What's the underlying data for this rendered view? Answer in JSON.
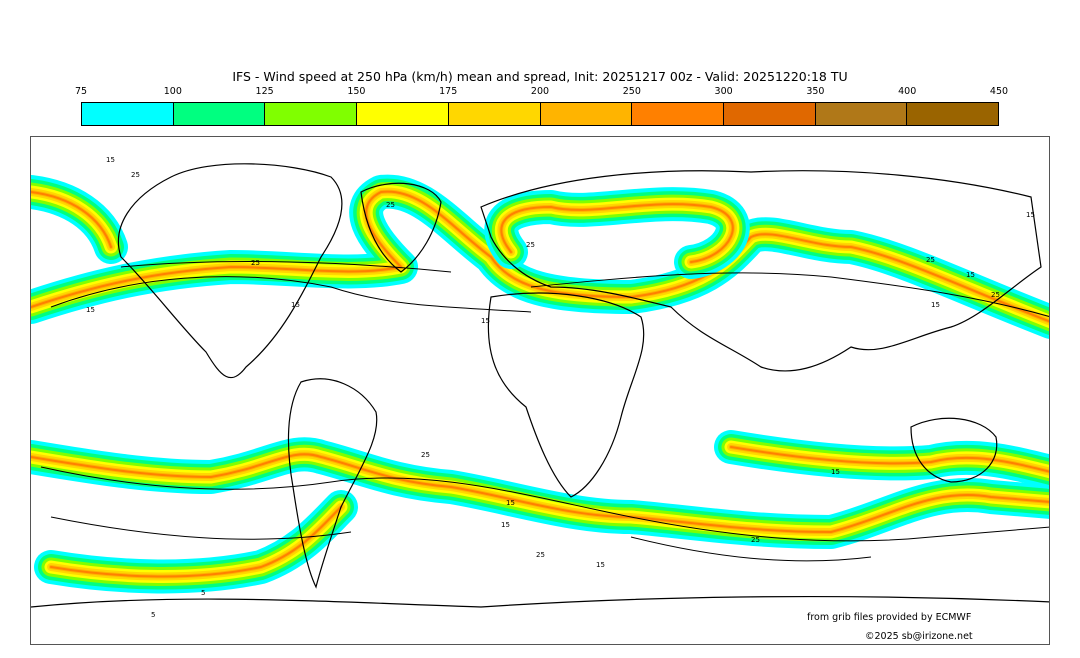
{
  "title": "IFS - Wind speed at 250 hPa (km/h) mean and spread, Init: 20251217 00z - Valid: 20251220:18 TU",
  "colorbar": {
    "ticks": [
      "75",
      "100",
      "125",
      "150",
      "175",
      "200",
      "250",
      "300",
      "350",
      "400",
      "450"
    ],
    "colors": [
      "#00ffff",
      "#00ff80",
      "#80ff00",
      "#ffff00",
      "#ffd700",
      "#ffb400",
      "#ff8000",
      "#e06800",
      "#b07818",
      "#9a6400"
    ]
  },
  "map": {
    "contour_labels": [
      "15",
      "25",
      "15",
      "25",
      "15",
      "25",
      "15",
      "25",
      "25",
      "15",
      "15",
      "25",
      "15",
      "25",
      "15",
      "15",
      "25",
      "15",
      "25",
      "15",
      "5",
      "5"
    ]
  },
  "credits": {
    "source": "from grib files provided by ECMWF",
    "copyright": "©2025 sb@irizone.net"
  }
}
